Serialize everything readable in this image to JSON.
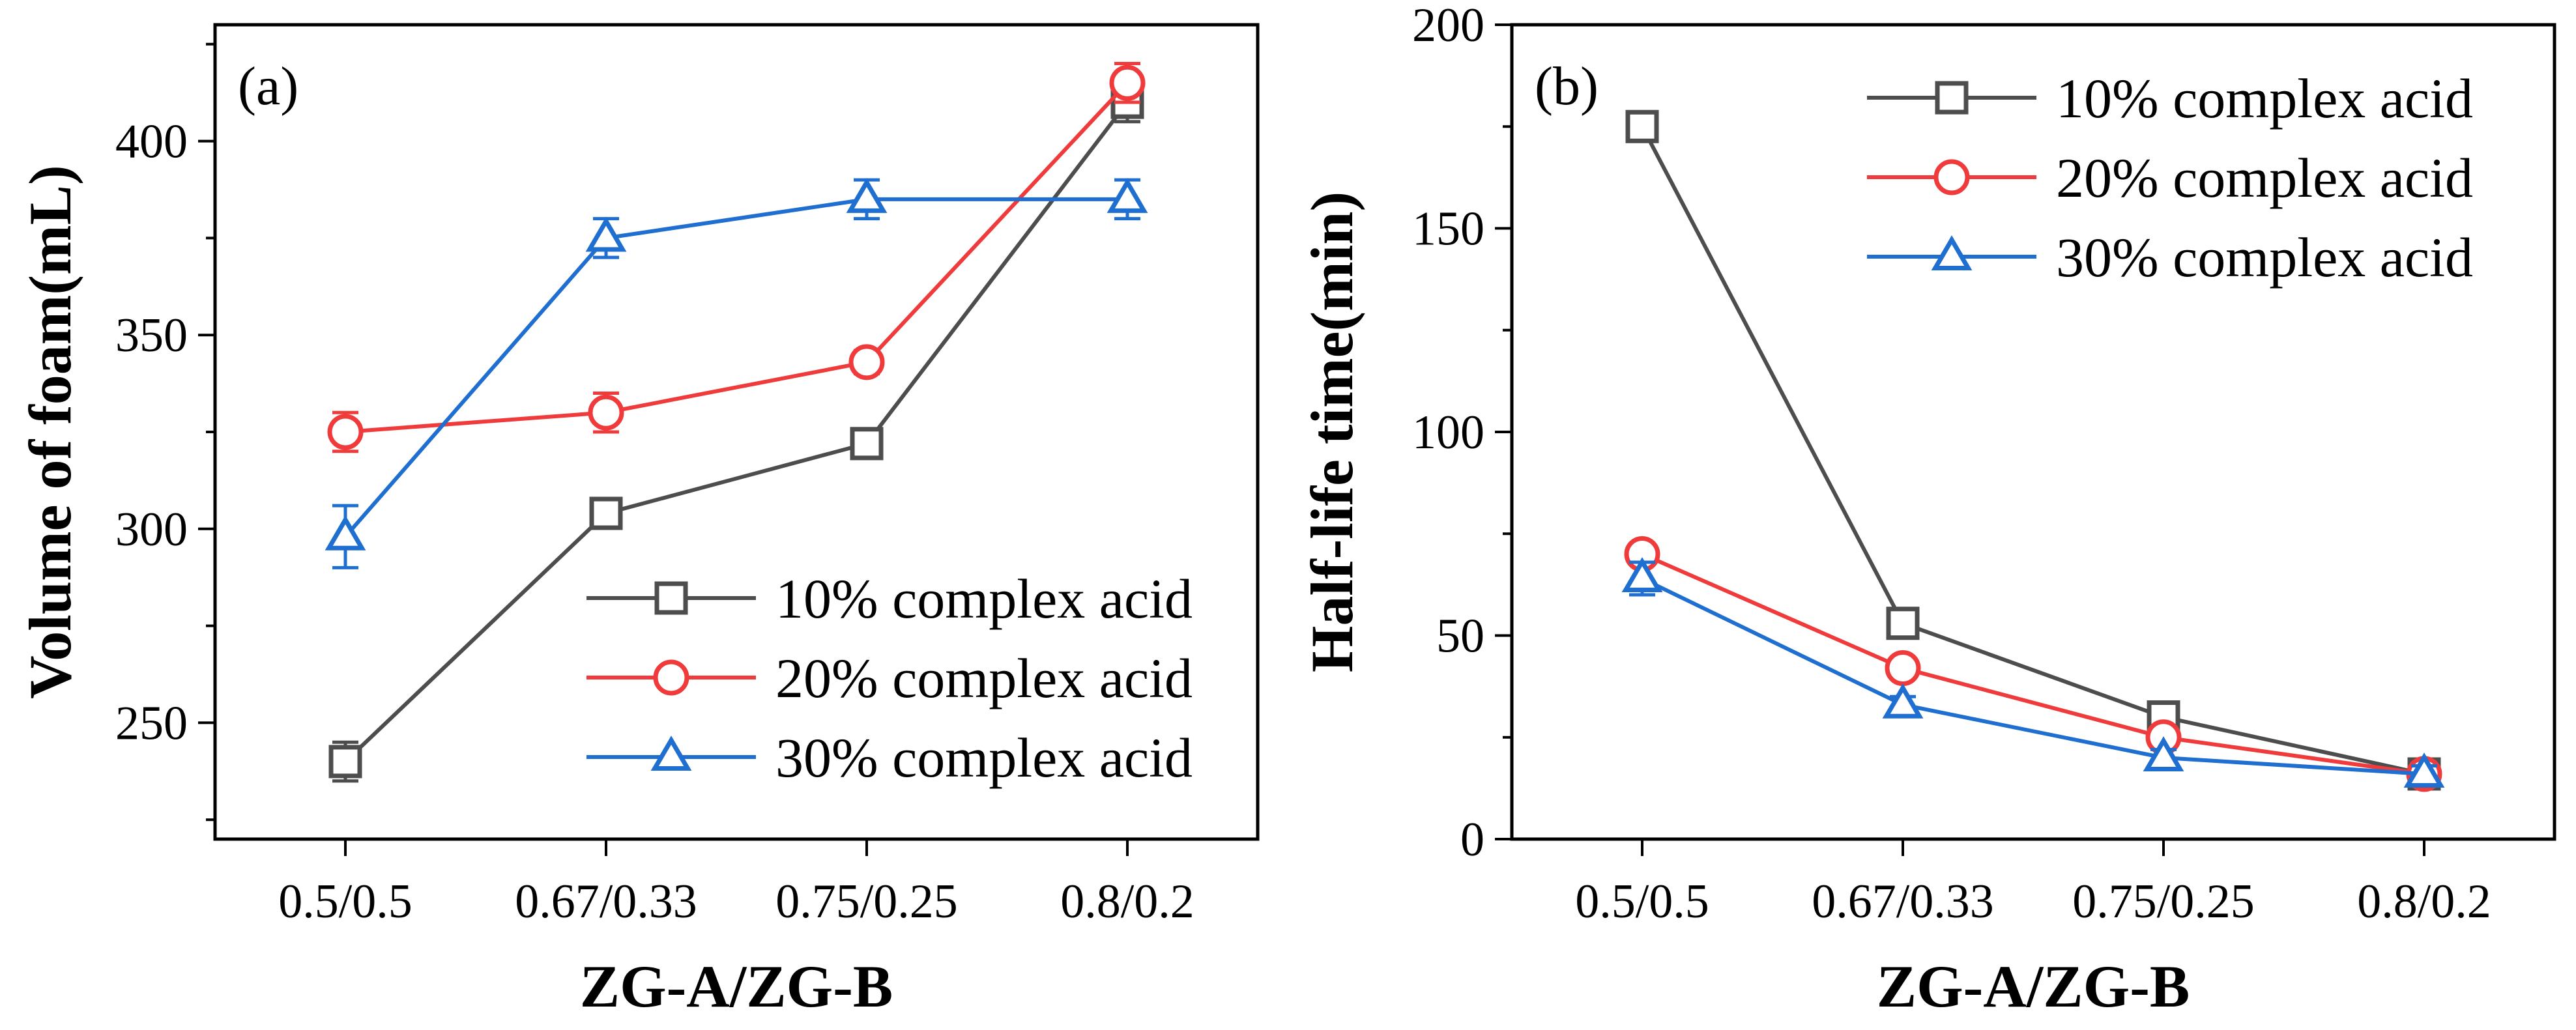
{
  "chart_data": [
    {
      "id": "a",
      "type": "line",
      "panel_label": "(a)",
      "xlabel": "ZG-A/ZG-B",
      "ylabel": "Volume of foam(mL)",
      "categories": [
        "0.5/0.5",
        "0.67/0.33",
        "0.75/0.25",
        "0.8/0.2"
      ],
      "ylim": [
        220,
        430
      ],
      "yticks": [
        250,
        300,
        350,
        400
      ],
      "yticklabels": [
        "250",
        "300",
        "350",
        "400"
      ],
      "legend_position": "bottom-right",
      "series": [
        {
          "name": "10% complex acid",
          "marker": "square",
          "color": "#4d4d4d",
          "values": [
            240,
            304,
            322,
            410
          ],
          "errors": [
            5,
            3,
            3,
            5
          ]
        },
        {
          "name": "20% complex acid",
          "marker": "circle",
          "color": "#ef3b3b",
          "values": [
            325,
            330,
            343,
            415
          ],
          "errors": [
            5,
            5,
            3,
            5
          ]
        },
        {
          "name": "30% complex acid",
          "marker": "triangle",
          "color": "#1f6fd1",
          "values": [
            298,
            375,
            385,
            385
          ],
          "errors": [
            8,
            5,
            5,
            5
          ]
        }
      ]
    },
    {
      "id": "b",
      "type": "line",
      "panel_label": "(b)",
      "xlabel": "ZG-A/ZG-B",
      "ylabel": "Half-life time(min)",
      "categories": [
        "0.5/0.5",
        "0.67/0.33",
        "0.75/0.25",
        "0.8/0.2"
      ],
      "ylim": [
        0,
        200
      ],
      "yticks": [
        0,
        50,
        100,
        150,
        200
      ],
      "yticklabels": [
        "0",
        "50",
        "100",
        "150",
        "200"
      ],
      "legend_position": "top-right",
      "series": [
        {
          "name": "10% complex acid",
          "marker": "square",
          "color": "#4d4d4d",
          "values": [
            175,
            53,
            30,
            16
          ],
          "errors": [
            3,
            2,
            2,
            2
          ]
        },
        {
          "name": "20% complex acid",
          "marker": "circle",
          "color": "#ef3b3b",
          "values": [
            70,
            42,
            25,
            16
          ],
          "errors": [
            2,
            2,
            2,
            2
          ]
        },
        {
          "name": "30% complex acid",
          "marker": "triangle",
          "color": "#1f6fd1",
          "values": [
            64,
            33,
            20,
            16
          ],
          "errors": [
            4,
            2,
            2,
            2
          ]
        }
      ]
    }
  ]
}
